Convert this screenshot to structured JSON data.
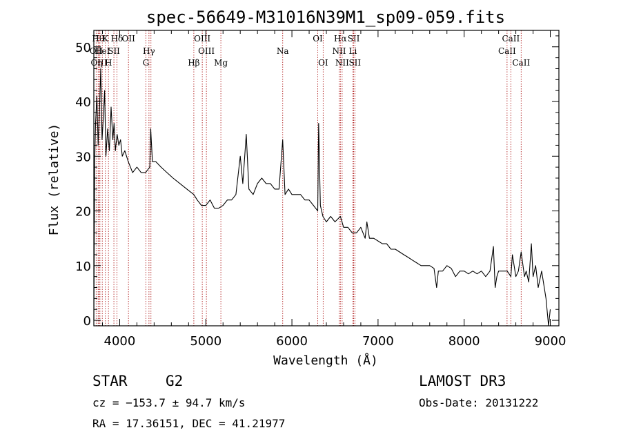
{
  "chart_data": {
    "type": "line",
    "title": "spec-56649-M31016N39M1_sp09-059.fits",
    "xlabel": "Wavelength (Å)",
    "ylabel": "Flux (relative)",
    "xlim": [
      3700,
      9100
    ],
    "ylim": [
      -1,
      53
    ],
    "xticks": [
      4000,
      5000,
      6000,
      7000,
      8000,
      9000
    ],
    "xtick_labels": [
      "4000",
      "5000",
      "6000",
      "7000",
      "8000",
      "9000"
    ],
    "yticks": [
      0,
      10,
      20,
      30,
      40,
      50
    ],
    "ytick_labels": [
      "0",
      "10",
      "20",
      "30",
      "40",
      "50"
    ],
    "spectrum": {
      "x": [
        3700,
        3710,
        3720,
        3735,
        3750,
        3765,
        3780,
        3795,
        3810,
        3825,
        3840,
        3860,
        3880,
        3900,
        3920,
        3935,
        3950,
        3970,
        3990,
        4010,
        4030,
        4060,
        4100,
        4150,
        4200,
        4250,
        4300,
        4350,
        4360,
        4380,
        4420,
        4480,
        4550,
        4620,
        4700,
        4780,
        4861,
        4900,
        4950,
        5000,
        5050,
        5100,
        5150,
        5200,
        5250,
        5300,
        5350,
        5400,
        5430,
        5470,
        5500,
        5550,
        5600,
        5650,
        5700,
        5750,
        5800,
        5850,
        5893,
        5920,
        5960,
        6000,
        6050,
        6100,
        6150,
        6200,
        6250,
        6300,
        6310,
        6330,
        6360,
        6400,
        6450,
        6500,
        6563,
        6600,
        6650,
        6700,
        6750,
        6800,
        6850,
        6870,
        6900,
        6950,
        7000,
        7050,
        7100,
        7150,
        7200,
        7250,
        7300,
        7350,
        7400,
        7450,
        7500,
        7550,
        7600,
        7650,
        7680,
        7700,
        7750,
        7800,
        7850,
        7900,
        7950,
        8000,
        8050,
        8100,
        8150,
        8200,
        8250,
        8300,
        8340,
        8360,
        8380,
        8400,
        8450,
        8500,
        8542,
        8560,
        8600,
        8630,
        8662,
        8700,
        8720,
        8750,
        8780,
        8800,
        8830,
        8860,
        8900,
        8950,
        8980,
        9000
      ],
      "y": [
        0,
        29,
        36,
        41,
        32,
        38,
        46,
        33,
        37,
        42,
        30,
        35,
        31,
        39,
        33,
        36,
        31,
        34,
        32,
        33,
        30,
        31,
        29,
        27,
        28,
        27,
        27,
        28,
        35,
        29,
        29,
        28,
        27,
        26,
        25,
        24,
        23,
        22,
        21,
        21,
        22,
        20.5,
        20.5,
        21,
        22,
        22,
        23,
        30,
        25,
        34,
        24,
        23,
        25,
        26,
        25,
        25,
        24,
        24,
        33,
        23,
        24,
        23,
        23,
        23,
        22,
        22,
        21,
        20,
        36,
        21,
        19,
        18,
        19,
        18,
        19,
        17,
        17,
        16,
        16,
        17,
        15,
        18,
        15,
        15,
        14.5,
        14,
        14,
        13,
        13,
        12.5,
        12,
        11.5,
        11,
        10.5,
        10,
        10,
        10,
        9.5,
        6,
        9,
        9,
        10,
        9.5,
        8,
        9,
        9,
        8.5,
        9,
        8.5,
        9,
        8,
        9,
        13.5,
        6,
        8,
        9,
        9,
        9,
        8,
        12,
        8,
        9,
        12.5,
        8,
        9,
        7,
        14,
        8,
        10,
        6,
        9,
        4,
        -1,
        2
      ]
    },
    "line_markers": [
      {
        "wavelength": 3727,
        "label": "OII",
        "row": 2
      },
      {
        "wavelength": 3750,
        "label": "Hθ",
        "row": 1
      },
      {
        "wavelength": 3760,
        "label": "OIII",
        "row": 3
      },
      {
        "wavelength": 3771,
        "label": "η",
        "row": 3
      },
      {
        "wavelength": 3798,
        "label": "HeI",
        "row": 2
      },
      {
        "wavelength": 3834,
        "label": "K",
        "row": 1
      },
      {
        "wavelength": 3870,
        "label": "H",
        "row": 3
      },
      {
        "wavelength": 3933,
        "label": "SII",
        "row": 2
      },
      {
        "wavelength": 3968,
        "label": "Hδ",
        "row": 1
      },
      {
        "wavelength": 4102,
        "label": "OII",
        "row": 1
      },
      {
        "wavelength": 4340,
        "label": "Hγ",
        "row": 2
      },
      {
        "wavelength": 4304,
        "label": "G",
        "row": 3
      },
      {
        "wavelength": 4363,
        "label": "",
        "row": 0
      },
      {
        "wavelength": 4861,
        "label": "Hβ",
        "row": 3
      },
      {
        "wavelength": 4959,
        "label": "OIII",
        "row": 1
      },
      {
        "wavelength": 5007,
        "label": "OIII",
        "row": 2
      },
      {
        "wavelength": 5175,
        "label": "Mg",
        "row": 3
      },
      {
        "wavelength": 5893,
        "label": "Na",
        "row": 2
      },
      {
        "wavelength": 6300,
        "label": "OI",
        "row": 1
      },
      {
        "wavelength": 6363,
        "label": "OI",
        "row": 3
      },
      {
        "wavelength": 6548,
        "label": "NII",
        "row": 2
      },
      {
        "wavelength": 6563,
        "label": "Hα",
        "row": 1
      },
      {
        "wavelength": 6583,
        "label": "NII",
        "row": 3
      },
      {
        "wavelength": 6708,
        "label": "Li",
        "row": 2
      },
      {
        "wavelength": 6717,
        "label": "SII",
        "row": 1
      },
      {
        "wavelength": 6731,
        "label": "SII",
        "row": 3
      },
      {
        "wavelength": 8498,
        "label": "CaII",
        "row": 2
      },
      {
        "wavelength": 8542,
        "label": "CaII",
        "row": 1
      },
      {
        "wavelength": 8662,
        "label": "CaII",
        "row": 3
      }
    ]
  },
  "info": {
    "class": "STAR",
    "subclass": "G2",
    "survey": "LAMOST DR3",
    "cz": "cz = −153.7 ± 94.7 km/s",
    "obs_date": "Obs-Date: 20131222",
    "coords": "RA =  17.36151, DEC =  41.21977"
  }
}
